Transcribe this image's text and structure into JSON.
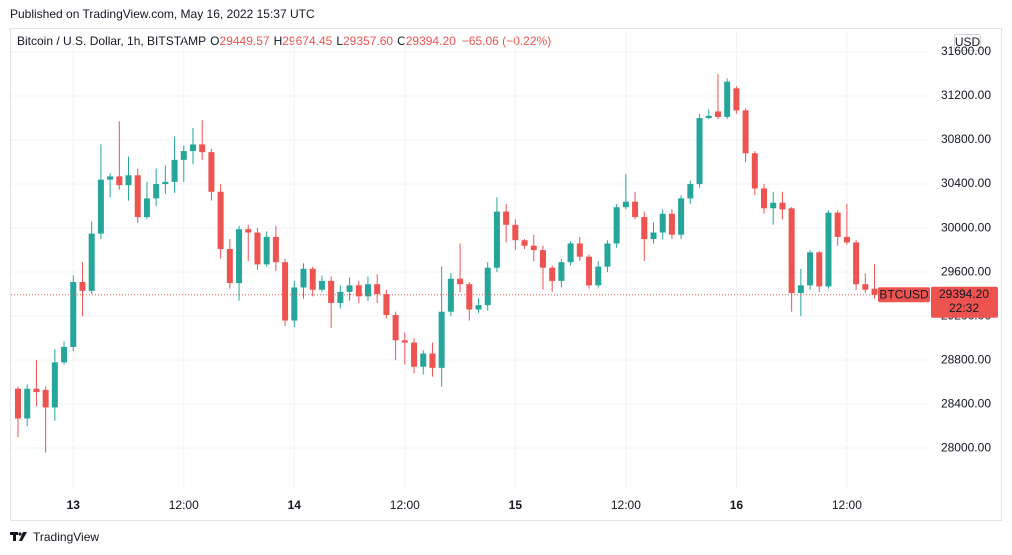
{
  "header": {
    "published": "Published on TradingView.com, May 16, 2022 15:37 UTC",
    "symbol": "Bitcoin / U.S. Dollar, 1h, BITSTAMP",
    "ohlc": [
      {
        "key": "O",
        "value": "29449.57"
      },
      {
        "key": "H",
        "value": "29674.45"
      },
      {
        "key": "L",
        "value": "29357.60"
      },
      {
        "key": "C",
        "value": "29394.20"
      }
    ],
    "change": "−65.06 (−0.22%)",
    "currency": "USD"
  },
  "footer": {
    "brand": "TradingView"
  },
  "chart_data": {
    "type": "candlestick",
    "categories": [
      null,
      null,
      null,
      null,
      null,
      null,
      "13",
      null,
      null,
      null,
      null,
      null,
      null,
      null,
      null,
      null,
      null,
      null,
      "12:00",
      null,
      null,
      null,
      null,
      null,
      null,
      null,
      null,
      null,
      null,
      null,
      "14",
      null,
      null,
      null,
      null,
      null,
      null,
      null,
      null,
      null,
      null,
      null,
      "12:00",
      null,
      null,
      null,
      null,
      null,
      null,
      null,
      null,
      null,
      null,
      null,
      "15",
      null,
      null,
      null,
      null,
      null,
      null,
      null,
      null,
      null,
      null,
      null,
      "12:00",
      null,
      null,
      null,
      null,
      null,
      null,
      null,
      null,
      null,
      null,
      null,
      "16",
      null,
      null,
      null,
      null,
      null,
      null,
      null,
      null,
      null,
      null,
      null,
      "12:00",
      null,
      null,
      null
    ],
    "open": [
      28540,
      28270,
      28540,
      28530,
      28370,
      28780,
      28920,
      29510,
      29430,
      29950,
      30440,
      30470,
      30390,
      30480,
      30100,
      30270,
      30400,
      30420,
      30620,
      30700,
      30760,
      30690,
      30330,
      29810,
      29500,
      29990,
      29960,
      29670,
      29920,
      29690,
      29160,
      29460,
      29630,
      29440,
      29520,
      29320,
      29420,
      29480,
      29380,
      29490,
      29400,
      29210,
      28980,
      28960,
      28740,
      28860,
      28730,
      29240,
      29540,
      29490,
      29260,
      29300,
      29640,
      30150,
      30030,
      29890,
      29840,
      29800,
      29640,
      29520,
      29690,
      29860,
      29740,
      29480,
      29650,
      29860,
      30190,
      30240,
      30100,
      29900,
      29960,
      30130,
      29940,
      30270,
      30400,
      31000,
      31060,
      31010,
      31270,
      31070,
      30680,
      30360,
      30180,
      30230,
      30180,
      29410,
      29480,
      29780,
      29470,
      30140,
      29920,
      29870,
      29490,
      29449.57
    ],
    "high": [
      28560,
      28580,
      28800,
      28560,
      28900,
      28970,
      29570,
      29690,
      30060,
      30760,
      30500,
      30970,
      30650,
      30540,
      30420,
      30540,
      30570,
      30830,
      30750,
      30910,
      30980,
      30720,
      30400,
      29900,
      30020,
      30030,
      30000,
      29970,
      30020,
      29720,
      29520,
      29680,
      29650,
      29570,
      29560,
      29480,
      29550,
      29520,
      29560,
      29580,
      29440,
      29240,
      29050,
      29000,
      28890,
      28960,
      29650,
      29590,
      29860,
      29510,
      29360,
      29690,
      30280,
      30220,
      30080,
      29900,
      29940,
      29840,
      29660,
      29720,
      29880,
      29920,
      29760,
      29700,
      29890,
      30220,
      30490,
      30330,
      30150,
      30050,
      30170,
      30170,
      30300,
      30430,
      31040,
      31080,
      31400,
      31360,
      31290,
      31090,
      30700,
      30400,
      30330,
      30330,
      30190,
      29630,
      29800,
      29790,
      30160,
      30160,
      30220,
      29890,
      29590,
      29674.45
    ],
    "low": [
      28100,
      28200,
      28380,
      27960,
      28250,
      28760,
      28880,
      29200,
      29400,
      29900,
      30280,
      30350,
      30250,
      30050,
      30080,
      30200,
      30310,
      30320,
      30420,
      30580,
      30620,
      30250,
      29720,
      29450,
      29340,
      29700,
      29620,
      29650,
      29610,
      29110,
      29100,
      29360,
      29380,
      29420,
      29090,
      29270,
      29340,
      29320,
      29340,
      29320,
      29180,
      28800,
      28760,
      28680,
      28670,
      28650,
      28560,
      29200,
      29420,
      29160,
      29230,
      29250,
      29600,
      29870,
      29800,
      29810,
      29700,
      29440,
      29420,
      29460,
      29660,
      29700,
      29450,
      29460,
      29600,
      29820,
      30170,
      30080,
      29700,
      29860,
      29900,
      29900,
      29900,
      30220,
      30370,
      30990,
      30990,
      30990,
      31040,
      30600,
      30300,
      30130,
      30030,
      30080,
      29240,
      29200,
      29440,
      29420,
      29450,
      29840,
      29850,
      29440,
      29410,
      29357.6
    ],
    "close": [
      28270,
      28540,
      28510,
      28370,
      28780,
      28920,
      29510,
      29430,
      29950,
      30440,
      30470,
      30390,
      30480,
      30100,
      30270,
      30400,
      30420,
      30620,
      30700,
      30760,
      30690,
      30330,
      29810,
      29500,
      29990,
      29960,
      29670,
      29920,
      29690,
      29160,
      29460,
      29630,
      29440,
      29520,
      29320,
      29420,
      29480,
      29380,
      29490,
      29400,
      29210,
      28980,
      28960,
      28740,
      28860,
      28730,
      29240,
      29540,
      29490,
      29260,
      29300,
      29640,
      30150,
      30030,
      29890,
      29840,
      29800,
      29640,
      29520,
      29690,
      29860,
      29740,
      29480,
      29650,
      29860,
      30190,
      30240,
      30100,
      29900,
      29960,
      30130,
      29940,
      30270,
      30400,
      31000,
      31020,
      31010,
      31330,
      31070,
      30680,
      30360,
      30180,
      30230,
      30170,
      29410,
      29480,
      29780,
      29470,
      30140,
      29920,
      29870,
      29490,
      29440,
      29394.2
    ],
    "up_color": "#26a69a",
    "down_color": "#ef5350",
    "ylim": [
      27620,
      31800
    ],
    "yticks": [
      {
        "value": 28000,
        "label": "28000.00"
      },
      {
        "value": 28400,
        "label": "28400.00"
      },
      {
        "value": 28800,
        "label": "28800.00"
      },
      {
        "value": 29200,
        "label": "29200.00"
      },
      {
        "value": 29600,
        "label": "29600.00"
      },
      {
        "value": 30000,
        "label": "30000.00"
      },
      {
        "value": 30400,
        "label": "30400.00"
      },
      {
        "value": 30800,
        "label": "30800.00"
      },
      {
        "value": 31200,
        "label": "31200.00"
      },
      {
        "value": 31600,
        "label": "31600.00"
      }
    ],
    "grid": true,
    "last_price": {
      "name": "BTCUSD",
      "label": "29394.20",
      "countdown": "22:32"
    }
  }
}
